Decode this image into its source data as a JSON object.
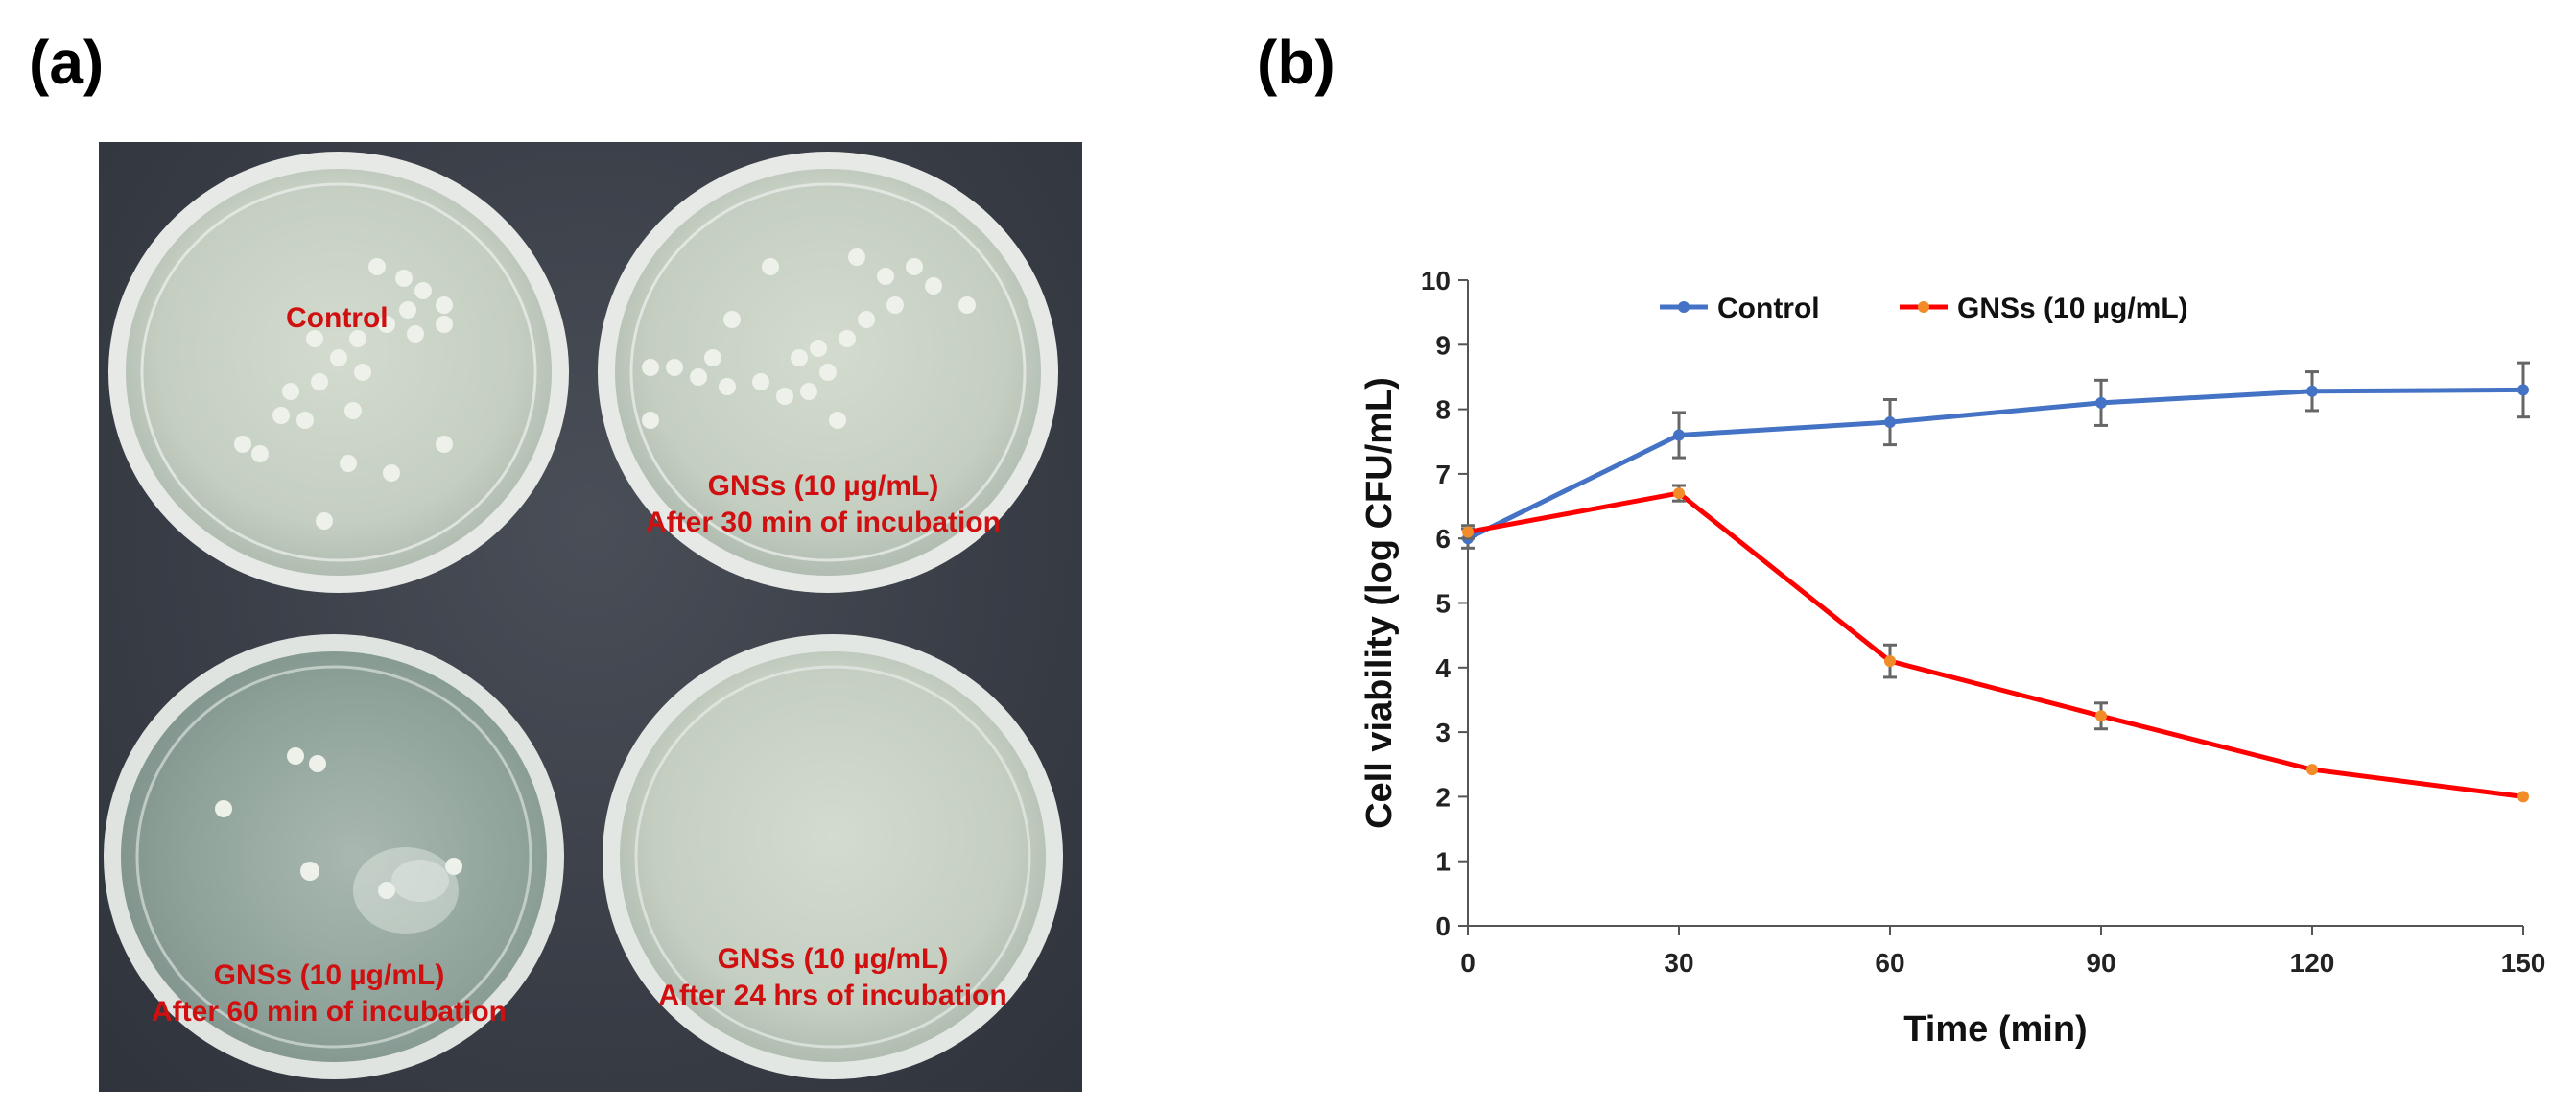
{
  "panel_labels": {
    "a": "(a)",
    "b": "(b)"
  },
  "photo": {
    "plates": [
      {
        "id": "top-left",
        "lines": [
          "Control"
        ]
      },
      {
        "id": "top-right",
        "lines": [
          "GNSs (10 µg/mL)",
          "After 30 min of incubation"
        ]
      },
      {
        "id": "bottom-left",
        "lines": [
          "GNSs (10 µg/mL)",
          "After 60 min of incubation"
        ]
      },
      {
        "id": "bottom-right",
        "lines": [
          "GNSs (10 µg/mL)",
          "After 24 hrs of incubation"
        ]
      }
    ]
  },
  "chart_data": {
    "type": "line",
    "title": "",
    "xlabel": "Time (min)",
    "ylabel": "Cell viability (log CFU/mL)",
    "x": [
      0,
      30,
      60,
      90,
      120,
      150
    ],
    "xlim": [
      0,
      150
    ],
    "ylim": [
      0,
      10
    ],
    "xticks": [
      0,
      30,
      60,
      90,
      120,
      150
    ],
    "yticks": [
      0,
      1,
      2,
      3,
      4,
      5,
      6,
      7,
      8,
      9,
      10
    ],
    "grid": false,
    "legend_position": "top",
    "series": [
      {
        "name": "Control",
        "color": "#4472c4",
        "values": [
          6.0,
          7.6,
          7.8,
          8.1,
          8.28,
          8.3
        ],
        "errors": [
          0.15,
          0.35,
          0.35,
          0.35,
          0.3,
          0.42
        ]
      },
      {
        "name": "GNSs (10 µg/mL)",
        "color": "#ff0000",
        "marker_color": "#f28c28",
        "values": [
          6.1,
          6.7,
          4.1,
          3.25,
          2.42,
          2.0
        ],
        "errors": [
          0.1,
          0.12,
          0.25,
          0.2,
          0.0,
          0.0
        ]
      }
    ]
  }
}
